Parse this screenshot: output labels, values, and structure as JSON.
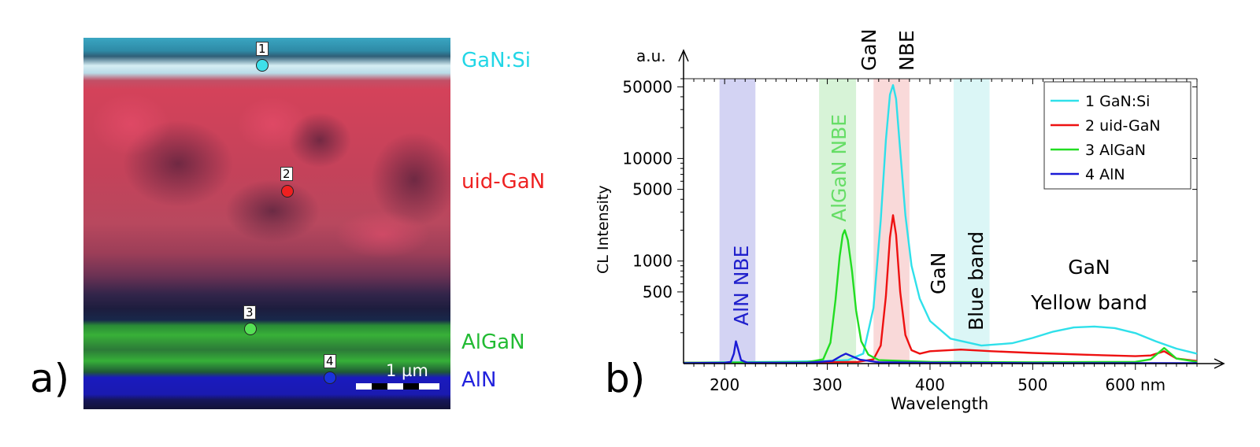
{
  "panel_a": {
    "letter": "a)",
    "layers": [
      {
        "label": "GaN:Si",
        "color": "#22d6e6"
      },
      {
        "label": "uid-GaN",
        "color": "#ee2222"
      },
      {
        "label": "AlGaN",
        "color": "#22bb33"
      },
      {
        "label": "AlN",
        "color": "#2222dd"
      }
    ],
    "markers": [
      {
        "num": "1",
        "color": "#3ee0ea"
      },
      {
        "num": "2",
        "color": "#ee2020"
      },
      {
        "num": "3",
        "color": "#55e055"
      },
      {
        "num": "4",
        "color": "#1a33dd"
      }
    ],
    "scale_bar_label": "1 µm"
  },
  "panel_b": {
    "letter": "b)",
    "unit_top": "a.u.",
    "x_end_label": "nm",
    "band_annotations": {
      "aln_nbe": "AlN NBE",
      "algan_nbe": "AlGaN NBE",
      "gan_nbe_line1": "GaN",
      "gan_nbe_line2": "NBE",
      "gan_blue_line1": "GaN",
      "gan_blue_line2": "Blue band",
      "gan_yellow_line1": "GaN",
      "gan_yellow_line2": "Yellow band"
    }
  },
  "chart_data": {
    "type": "line",
    "xlabel": "Wavelength",
    "ylabel": "CL Intensity",
    "xlim": [
      160,
      660
    ],
    "ylim": [
      100,
      60000
    ],
    "y_scale": "log",
    "x_ticks": [
      200,
      300,
      400,
      500,
      600
    ],
    "x_tick_labels": [
      "200",
      "300",
      "400",
      "500",
      "600 nm"
    ],
    "y_ticks": [
      500,
      1000,
      5000,
      10000,
      50000
    ],
    "y_tick_labels": [
      "500",
      "1000",
      "5000",
      "10000",
      "50000"
    ],
    "legend_position": "top-right",
    "highlight_bands": [
      {
        "x0": 195,
        "x1": 230,
        "color": "#c8c8f0"
      },
      {
        "x0": 292,
        "x1": 328,
        "color": "#cdf0cd"
      },
      {
        "x0": 345,
        "x1": 380,
        "color": "#f8d0d0"
      },
      {
        "x0": 423,
        "x1": 458,
        "color": "#d2f4f4"
      }
    ],
    "series": [
      {
        "name": "1 GaN:Si",
        "color": "#2fe0ea",
        "x": [
          160,
          200,
          250,
          300,
          320,
          335,
          345,
          352,
          357,
          361,
          364,
          367,
          371,
          376,
          382,
          390,
          400,
          420,
          450,
          480,
          500,
          520,
          540,
          560,
          580,
          600,
          620,
          640,
          660
        ],
        "y": [
          102,
          103,
          104,
          106,
          108,
          125,
          350,
          2500,
          15000,
          42000,
          52000,
          38000,
          12000,
          2800,
          900,
          430,
          260,
          175,
          150,
          158,
          178,
          205,
          225,
          230,
          222,
          198,
          165,
          140,
          125
        ]
      },
      {
        "name": "2 uid-GaN",
        "color": "#ee1111",
        "x": [
          160,
          250,
          330,
          345,
          352,
          357,
          361,
          364,
          367,
          371,
          376,
          382,
          390,
          400,
          430,
          460,
          500,
          550,
          600,
          615,
          628,
          640,
          660
        ],
        "y": [
          102,
          102,
          104,
          110,
          150,
          450,
          1700,
          2800,
          1800,
          500,
          190,
          135,
          125,
          132,
          137,
          132,
          127,
          122,
          118,
          120,
          132,
          112,
          106
        ]
      },
      {
        "name": "3 AlGaN",
        "color": "#22dd22",
        "x": [
          160,
          280,
          296,
          303,
          308,
          312,
          315,
          317,
          320,
          324,
          328,
          333,
          340,
          350,
          400,
          500,
          600,
          615,
          628,
          640,
          660
        ],
        "y": [
          102,
          103,
          110,
          160,
          420,
          1100,
          1800,
          2000,
          1600,
          800,
          330,
          165,
          122,
          108,
          104,
          103,
          104,
          110,
          142,
          112,
          104
        ]
      },
      {
        "name": "4 AlN",
        "color": "#1a1ad6",
        "x": [
          160,
          200,
          206,
          209,
          211,
          213,
          216,
          222,
          280,
          305,
          313,
          318,
          323,
          332,
          350,
          400,
          500,
          660
        ],
        "y": [
          101,
          102,
          104,
          125,
          165,
          140,
          108,
          102,
          102,
          106,
          118,
          125,
          119,
          109,
          103,
          102,
          101,
          101
        ]
      }
    ]
  }
}
